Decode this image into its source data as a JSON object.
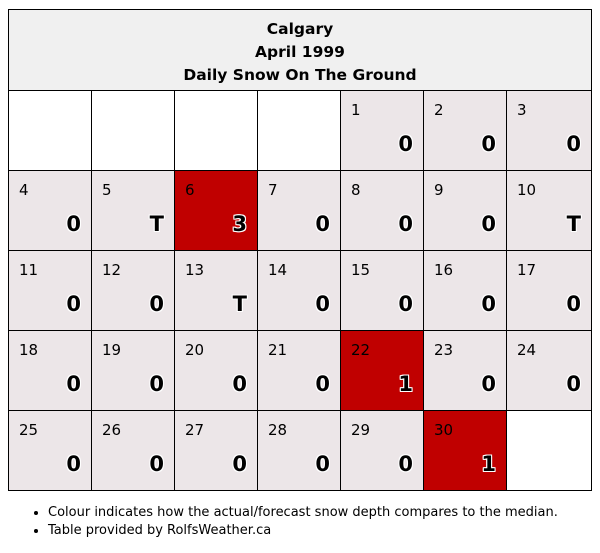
{
  "header": {
    "city": "Calgary",
    "month": "April 1999",
    "subtitle": "Daily Snow On The Ground"
  },
  "colors": {
    "normal": "#ece6e8",
    "above_median": "#c00000",
    "empty": "#ffffff"
  },
  "calendar": {
    "leading_blanks": 4,
    "days": [
      {
        "day": "1",
        "value": "0",
        "status": "normal"
      },
      {
        "day": "2",
        "value": "0",
        "status": "normal"
      },
      {
        "day": "3",
        "value": "0",
        "status": "normal"
      },
      {
        "day": "4",
        "value": "0",
        "status": "normal"
      },
      {
        "day": "5",
        "value": "T",
        "status": "normal"
      },
      {
        "day": "6",
        "value": "3",
        "status": "above"
      },
      {
        "day": "7",
        "value": "0",
        "status": "normal"
      },
      {
        "day": "8",
        "value": "0",
        "status": "normal"
      },
      {
        "day": "9",
        "value": "0",
        "status": "normal"
      },
      {
        "day": "10",
        "value": "T",
        "status": "normal"
      },
      {
        "day": "11",
        "value": "0",
        "status": "normal"
      },
      {
        "day": "12",
        "value": "0",
        "status": "normal"
      },
      {
        "day": "13",
        "value": "T",
        "status": "normal"
      },
      {
        "day": "14",
        "value": "0",
        "status": "normal"
      },
      {
        "day": "15",
        "value": "0",
        "status": "normal"
      },
      {
        "day": "16",
        "value": "0",
        "status": "normal"
      },
      {
        "day": "17",
        "value": "0",
        "status": "normal"
      },
      {
        "day": "18",
        "value": "0",
        "status": "normal"
      },
      {
        "day": "19",
        "value": "0",
        "status": "normal"
      },
      {
        "day": "20",
        "value": "0",
        "status": "normal"
      },
      {
        "day": "21",
        "value": "0",
        "status": "normal"
      },
      {
        "day": "22",
        "value": "1",
        "status": "above"
      },
      {
        "day": "23",
        "value": "0",
        "status": "normal"
      },
      {
        "day": "24",
        "value": "0",
        "status": "normal"
      },
      {
        "day": "25",
        "value": "0",
        "status": "normal"
      },
      {
        "day": "26",
        "value": "0",
        "status": "normal"
      },
      {
        "day": "27",
        "value": "0",
        "status": "normal"
      },
      {
        "day": "28",
        "value": "0",
        "status": "normal"
      },
      {
        "day": "29",
        "value": "0",
        "status": "normal"
      },
      {
        "day": "30",
        "value": "1",
        "status": "above"
      }
    ]
  },
  "notes": [
    "Colour indicates how the actual/forecast snow depth compares to the median.",
    "Table provided by RolfsWeather.ca"
  ]
}
